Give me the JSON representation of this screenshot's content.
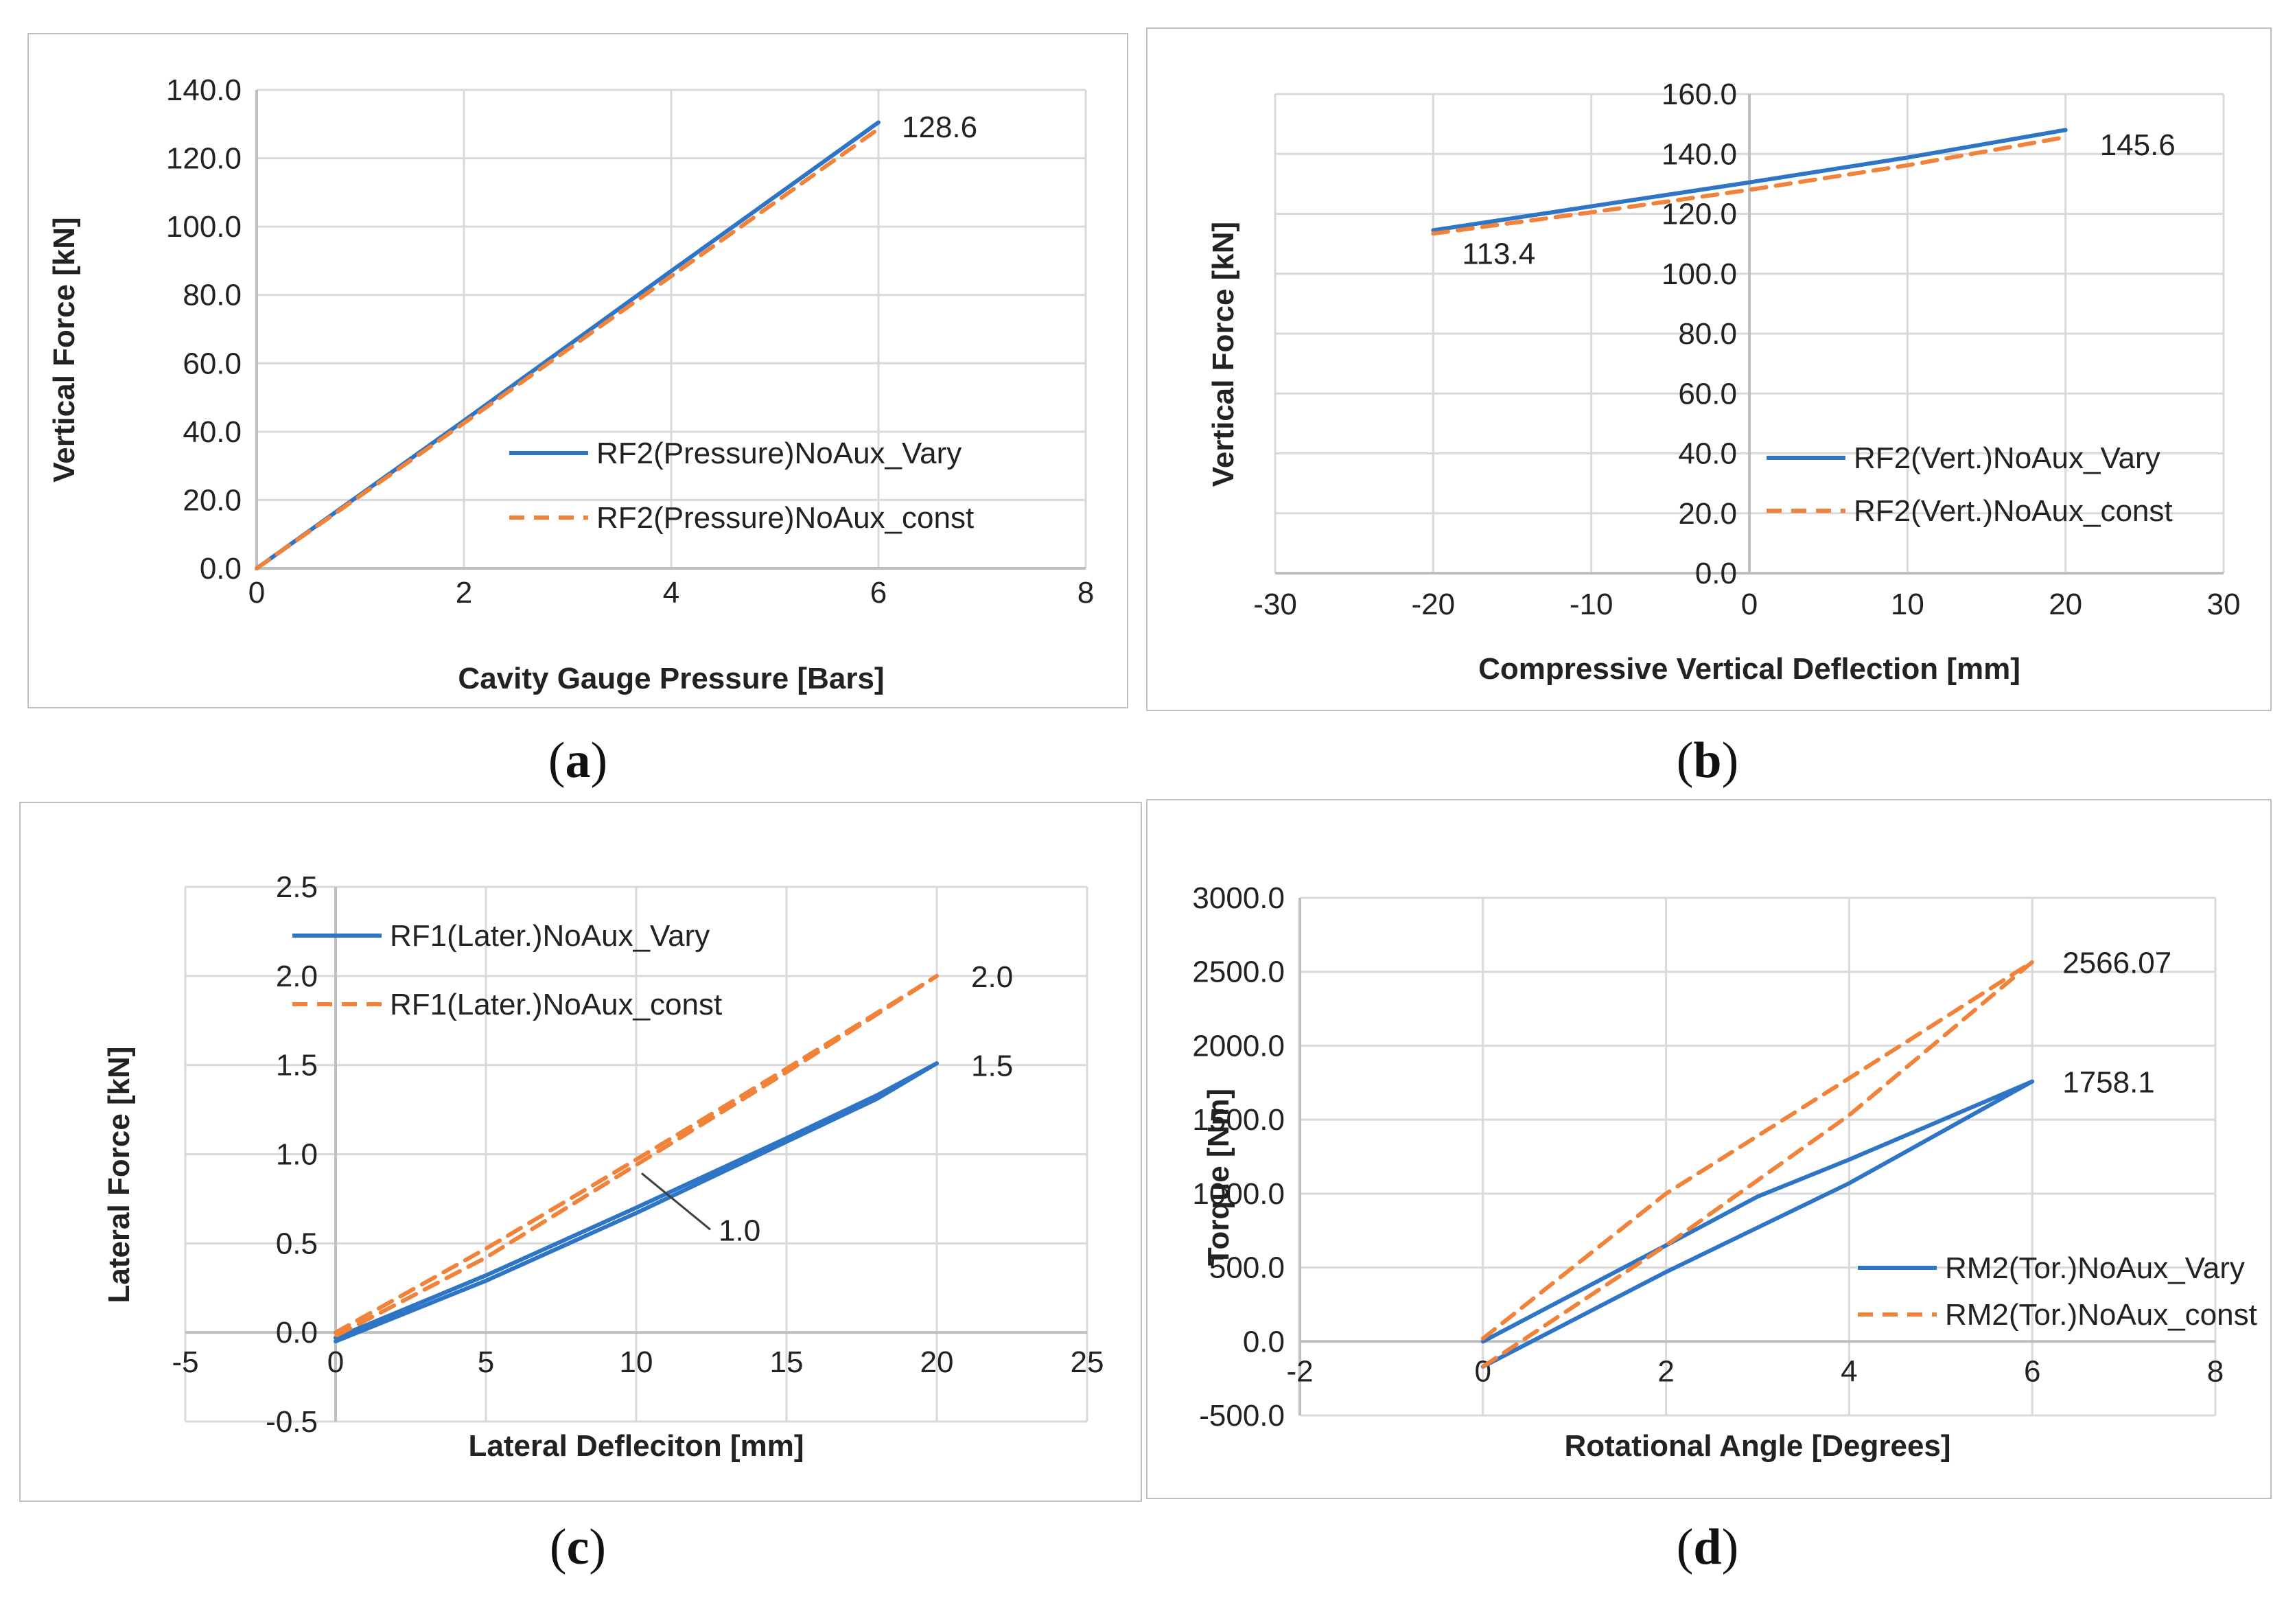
{
  "colors": {
    "vary": "#2e75c6",
    "const": "#f0823a",
    "grid": "#d9d9d9",
    "axis": "#bfbfbf",
    "text": "#222222"
  },
  "captions": {
    "a": "a",
    "b": "b",
    "c": "c",
    "d": "d"
  },
  "chart_data": [
    {
      "id": "a",
      "type": "line",
      "xlabel": "Cavity Gauge Pressure [Bars]",
      "ylabel": "Vertical Force [kN]",
      "xlim": [
        0,
        8
      ],
      "ylim": [
        0,
        140
      ],
      "x_ticks": [
        0,
        2,
        4,
        6,
        8
      ],
      "x_tick_labels": [
        "0",
        "2",
        "4",
        "6",
        "8"
      ],
      "y_ticks": [
        0,
        20,
        40,
        60,
        80,
        100,
        120,
        140
      ],
      "y_tick_labels": [
        "0.0",
        "20.0",
        "40.0",
        "60.0",
        "80.0",
        "100.0",
        "120.0",
        "140.0"
      ],
      "grid": true,
      "legend_position": "right",
      "series": [
        {
          "name": "RF2(Pressure)NoAux_Vary",
          "style": "solid",
          "x": [
            0,
            2,
            4,
            6
          ],
          "y": [
            0,
            43.2,
            87.0,
            130.5
          ]
        },
        {
          "name": "RF2(Pressure)NoAux_const",
          "style": "dashed",
          "x": [
            0,
            2,
            4,
            6
          ],
          "y": [
            0,
            42.5,
            85.5,
            128.6
          ]
        }
      ],
      "annotations": [
        {
          "text": "128.6",
          "x": 6,
          "y": 128.6,
          "position": "right"
        }
      ]
    },
    {
      "id": "b",
      "type": "line",
      "xlabel": "Compressive Vertical Deflection [mm]",
      "ylabel": "Vertical Force [kN]",
      "xlim": [
        -30,
        30
      ],
      "ylim": [
        0,
        160
      ],
      "x_ticks": [
        -30,
        -20,
        -10,
        0,
        10,
        20,
        30
      ],
      "x_tick_labels": [
        "-30",
        "-20",
        "-10",
        "0",
        "10",
        "20",
        "30"
      ],
      "y_ticks": [
        0,
        20,
        40,
        60,
        80,
        100,
        120,
        140,
        160
      ],
      "y_tick_labels": [
        "0.0",
        "20.0",
        "40.0",
        "60.0",
        "80.0",
        "100.0",
        "120.0",
        "140.0",
        "160.0"
      ],
      "grid": true,
      "legend_position": "right",
      "series": [
        {
          "name": "RF2(Vert.)NoAux_Vary",
          "style": "solid",
          "x": [
            -20,
            -10,
            0,
            10,
            20
          ],
          "y": [
            114.5,
            122.5,
            130.5,
            138.8,
            148.0
          ]
        },
        {
          "name": "RF2(Vert.)NoAux_const",
          "style": "dashed",
          "x": [
            -20,
            -10,
            0,
            10,
            20
          ],
          "y": [
            113.4,
            120.5,
            128.0,
            136.2,
            145.6
          ]
        }
      ],
      "annotations": [
        {
          "text": "145.6",
          "x": 20,
          "y": 145.6,
          "position": "right"
        },
        {
          "text": "113.4",
          "x": -20,
          "y": 113.4,
          "position": "below"
        }
      ]
    },
    {
      "id": "c",
      "type": "line",
      "xlabel": "Lateral Defleciton [mm]",
      "ylabel": "Lateral Force [kN]",
      "xlim": [
        -5,
        25
      ],
      "ylim": [
        -0.5,
        2.5
      ],
      "x_ticks": [
        -5,
        0,
        5,
        10,
        15,
        20,
        25
      ],
      "x_tick_labels": [
        "-5",
        "0",
        "5",
        "10",
        "15",
        "20",
        "25"
      ],
      "y_ticks": [
        -0.5,
        0,
        0.5,
        1.0,
        1.5,
        2.0,
        2.5
      ],
      "y_tick_labels": [
        "-0.5",
        "0.0",
        "0.5",
        "1.0",
        "1.5",
        "2.0",
        "2.5"
      ],
      "grid": true,
      "legend_position": "top-left",
      "series": [
        {
          "name": "RF1(Later.)NoAux_Vary",
          "style": "solid",
          "x": [
            0,
            5,
            10,
            15,
            18,
            20,
            18,
            15,
            10,
            5,
            0
          ],
          "y": [
            -0.03,
            0.32,
            0.7,
            1.09,
            1.33,
            1.51,
            1.31,
            1.07,
            0.67,
            0.29,
            -0.05
          ]
        },
        {
          "name": "RF1(Later.)NoAux_const",
          "style": "dashed",
          "x": [
            0,
            5,
            10,
            15,
            20,
            15,
            10,
            5,
            0
          ],
          "y": [
            0.0,
            0.47,
            0.97,
            1.48,
            2.0,
            1.46,
            0.94,
            0.42,
            -0.02
          ]
        }
      ],
      "annotations": [
        {
          "text": "2.0",
          "x": 20,
          "y": 2.0,
          "position": "right"
        },
        {
          "text": "1.5",
          "x": 20,
          "y": 1.5,
          "position": "right"
        },
        {
          "text": "1.0",
          "x": 10,
          "y": 0.97,
          "position": "below-right"
        }
      ]
    },
    {
      "id": "d",
      "type": "line",
      "xlabel": "Rotational Angle [Degrees]",
      "ylabel": "Torque [Nm]",
      "xlim": [
        -2,
        8
      ],
      "ylim": [
        -500,
        3000
      ],
      "x_ticks": [
        -2,
        0,
        2,
        4,
        6,
        8
      ],
      "x_tick_labels": [
        "-2",
        "0",
        "2",
        "4",
        "6",
        "8"
      ],
      "y_ticks": [
        -500,
        0,
        500,
        1000,
        1500,
        2000,
        2500,
        3000
      ],
      "y_tick_labels": [
        "-500.0",
        "0.0",
        "500.0",
        "1000.0",
        "1500.0",
        "2000.0",
        "2500.0",
        "3000.0"
      ],
      "grid": true,
      "legend_position": "bottom-right",
      "series": [
        {
          "name": "RM2(Tor.)NoAux_Vary",
          "style": "solid",
          "x": [
            0,
            2,
            3,
            4,
            6,
            4,
            2,
            0
          ],
          "y": [
            0,
            650,
            980,
            1230,
            1758.1,
            1070,
            470,
            -170
          ]
        },
        {
          "name": "RM2(Tor.)NoAux_const",
          "style": "dashed",
          "x": [
            0,
            2,
            4,
            6,
            4,
            2,
            0
          ],
          "y": [
            20,
            1000,
            1780,
            2566.07,
            1530,
            650,
            -170
          ]
        }
      ],
      "annotations": [
        {
          "text": "2566.07",
          "x": 6,
          "y": 2566.07,
          "position": "right"
        },
        {
          "text": "1758.1",
          "x": 6,
          "y": 1758.1,
          "position": "right"
        }
      ]
    }
  ]
}
